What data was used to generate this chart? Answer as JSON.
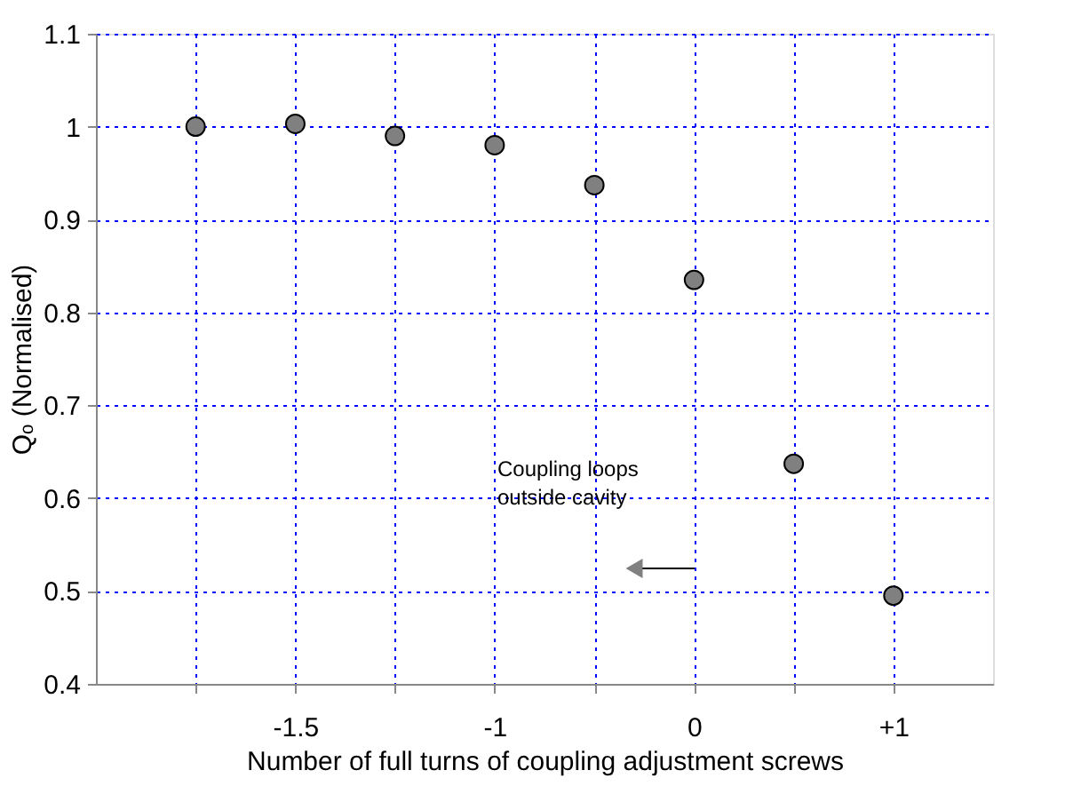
{
  "chart_data": {
    "type": "scatter",
    "xlabel": "Number of full turns of coupling adjustment screws",
    "ylabel": "Qₒ (Normalised)",
    "categories": [
      null,
      "-1.5",
      null,
      "-1",
      null,
      "0",
      null,
      "+1"
    ],
    "series": [
      {
        "color": "#808080",
        "values": [
          1.0,
          1.003,
          0.99,
          0.98,
          0.937,
          0.835,
          0.637,
          0.495
        ]
      }
    ],
    "ylim": [
      0.4,
      1.1
    ],
    "yticks": [
      0.4,
      0.5,
      0.6,
      0.7,
      0.8,
      0.9,
      1,
      1.1
    ],
    "grid": true,
    "marker": "circle",
    "annotations": [
      "Coupling loops\noutside cavity"
    ]
  }
}
